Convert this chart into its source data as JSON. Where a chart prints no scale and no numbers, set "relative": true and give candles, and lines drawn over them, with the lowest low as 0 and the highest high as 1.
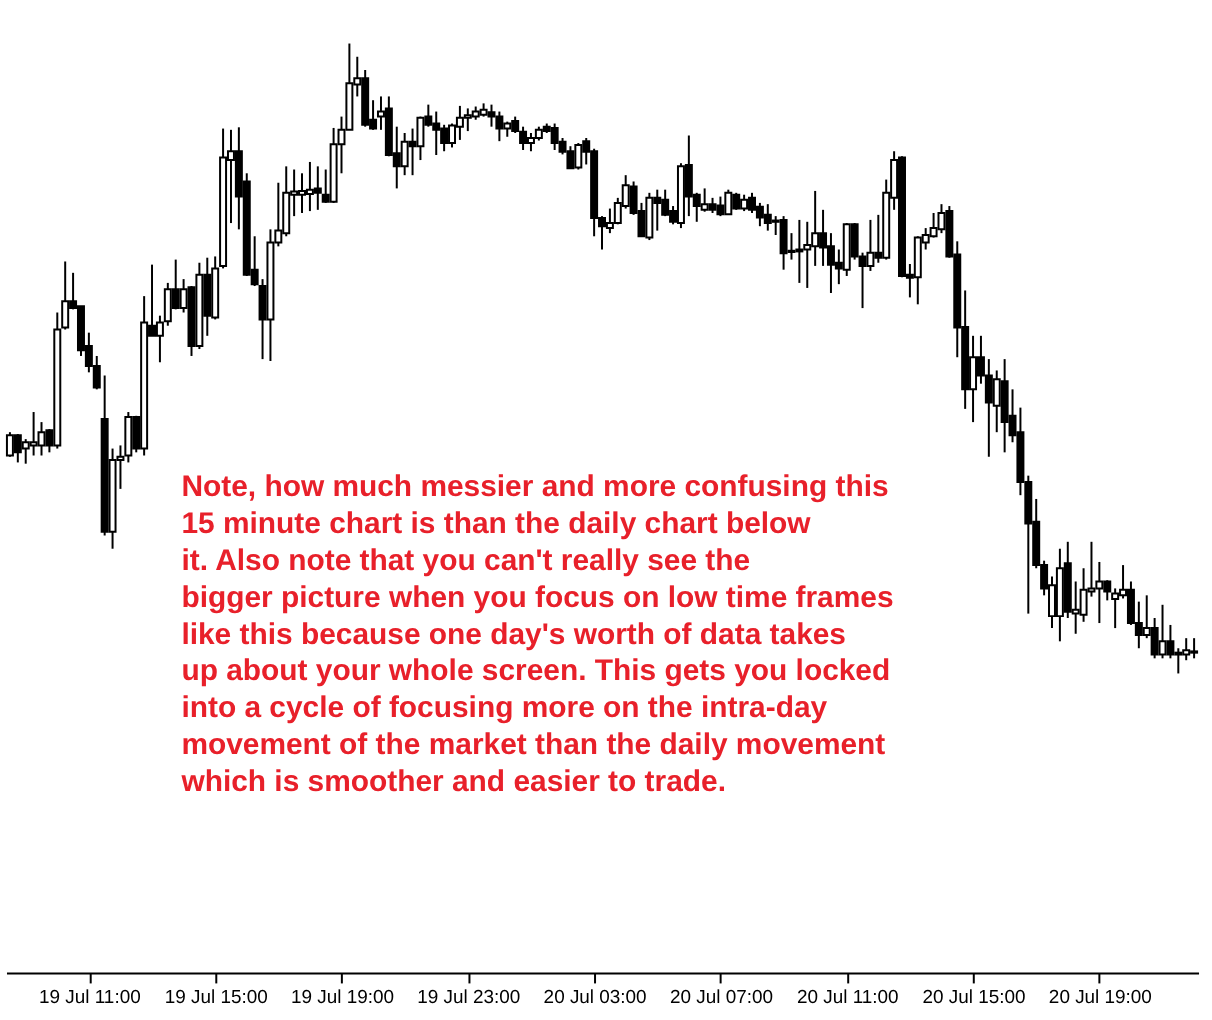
{
  "chart_data": {
    "type": "candlestick",
    "relative": true,
    "color": "#000000",
    "grid": false,
    "tick_labels": "x",
    "annotations": [
      "Note, how much messier and more confusing this 15 minute chart is than the daily chart below it. Also note that you can't really see the bigger picture when you focus on low time frames like this because one day's worth of data takes up about your whole screen. This gets you locked into a cycle of focusing more on the intra-day movement of the market than the daily movement which is smoother and easier to trade."
    ],
    "categories": [
      null,
      null,
      null,
      null,
      null,
      null,
      null,
      null,
      null,
      null,
      "19 Jul 11:00",
      null,
      null,
      null,
      null,
      null,
      null,
      null,
      null,
      null,
      null,
      null,
      null,
      null,
      null,
      null,
      "19 Jul 15:00",
      null,
      null,
      null,
      null,
      null,
      null,
      null,
      null,
      null,
      null,
      null,
      null,
      null,
      null,
      null,
      "19 Jul 19:00",
      null,
      null,
      null,
      null,
      null,
      null,
      null,
      null,
      null,
      null,
      null,
      null,
      null,
      null,
      null,
      "19 Jul 23:00",
      null,
      null,
      null,
      null,
      null,
      null,
      null,
      null,
      null,
      null,
      null,
      null,
      null,
      null,
      null,
      "20 Jul 03:00",
      null,
      null,
      null,
      null,
      null,
      null,
      null,
      null,
      null,
      null,
      null,
      null,
      null,
      null,
      null,
      "20 Jul 07:00",
      null,
      null,
      null,
      null,
      null,
      null,
      null,
      null,
      null,
      null,
      null,
      null,
      null,
      null,
      null,
      "20 Jul 11:00",
      null,
      null,
      null,
      null,
      null,
      null,
      null,
      null,
      null,
      null,
      null,
      null,
      null,
      null,
      null,
      "20 Jul 15:00",
      null,
      null,
      null,
      null,
      null,
      null,
      null,
      null,
      null,
      null,
      null,
      null,
      null,
      null,
      null,
      "20 Jul 19:00",
      null,
      null,
      null,
      null,
      null,
      null,
      null,
      null,
      null,
      null,
      null,
      null
    ],
    "ohlc": [
      [
        0.346,
        0.383,
        0.344,
        0.378
      ],
      [
        0.378,
        0.38,
        0.335,
        0.351
      ],
      [
        0.357,
        0.372,
        0.333,
        0.367
      ],
      [
        0.362,
        0.415,
        0.346,
        0.367
      ],
      [
        0.362,
        0.399,
        0.346,
        0.383
      ],
      [
        0.386,
        0.388,
        0.351,
        0.362
      ],
      [
        0.362,
        0.573,
        0.357,
        0.546
      ],
      [
        0.549,
        0.654,
        0.546,
        0.591
      ],
      [
        0.591,
        0.636,
        0.578,
        0.58
      ],
      [
        0.583,
        0.583,
        0.504,
        0.513
      ],
      [
        0.52,
        0.541,
        0.478,
        0.488
      ],
      [
        0.488,
        0.504,
        0.451,
        0.454
      ],
      [
        0.404,
        0.473,
        0.219,
        0.225
      ],
      [
        0.225,
        0.357,
        0.198,
        0.339
      ],
      [
        0.339,
        0.362,
        0.293,
        0.344
      ],
      [
        0.346,
        0.415,
        0.335,
        0.407
      ],
      [
        0.407,
        0.409,
        0.351,
        0.357
      ],
      [
        0.357,
        0.599,
        0.346,
        0.557
      ],
      [
        0.552,
        0.649,
        0.536,
        0.536
      ],
      [
        0.536,
        0.568,
        0.494,
        0.557
      ],
      [
        0.559,
        0.62,
        0.552,
        0.61
      ],
      [
        0.61,
        0.657,
        0.578,
        0.58
      ],
      [
        0.58,
        0.626,
        0.573,
        0.61
      ],
      [
        0.613,
        0.615,
        0.504,
        0.52
      ],
      [
        0.52,
        0.652,
        0.515,
        0.633
      ],
      [
        0.633,
        0.66,
        0.536,
        0.568
      ],
      [
        0.565,
        0.662,
        0.562,
        0.643
      ],
      [
        0.647,
        0.865,
        0.643,
        0.819
      ],
      [
        0.815,
        0.863,
        0.715,
        0.829
      ],
      [
        0.829,
        0.867,
        0.705,
        0.757
      ],
      [
        0.781,
        0.794,
        0.631,
        0.633
      ],
      [
        0.641,
        0.694,
        0.615,
        0.618
      ],
      [
        0.615,
        0.626,
        0.499,
        0.562
      ],
      [
        0.562,
        0.705,
        0.496,
        0.684
      ],
      [
        0.684,
        0.779,
        0.678,
        0.703
      ],
      [
        0.699,
        0.805,
        0.694,
        0.763
      ],
      [
        0.76,
        0.8,
        0.726,
        0.765
      ],
      [
        0.76,
        0.794,
        0.731,
        0.766
      ],
      [
        0.761,
        0.812,
        0.734,
        0.768
      ],
      [
        0.77,
        0.805,
        0.736,
        0.763
      ],
      [
        0.76,
        0.8,
        0.747,
        0.749
      ],
      [
        0.749,
        0.866,
        0.747,
        0.84
      ],
      [
        0.84,
        0.884,
        0.794,
        0.863
      ],
      [
        0.863,
        1.0,
        0.863,
        0.937
      ],
      [
        0.935,
        0.979,
        0.916,
        0.945
      ],
      [
        0.945,
        0.958,
        0.868,
        0.871
      ],
      [
        0.879,
        0.91,
        0.863,
        0.865
      ],
      [
        0.884,
        0.916,
        0.863,
        0.892
      ],
      [
        0.897,
        0.916,
        0.821,
        0.823
      ],
      [
        0.826,
        0.868,
        0.77,
        0.805
      ],
      [
        0.805,
        0.858,
        0.791,
        0.844
      ],
      [
        0.844,
        0.865,
        0.791,
        0.837
      ],
      [
        0.837,
        0.884,
        0.815,
        0.882
      ],
      [
        0.884,
        0.903,
        0.868,
        0.871
      ],
      [
        0.873,
        0.892,
        0.823,
        0.863
      ],
      [
        0.865,
        0.871,
        0.829,
        0.842
      ],
      [
        0.842,
        0.873,
        0.835,
        0.87
      ],
      [
        0.868,
        0.901,
        0.847,
        0.882
      ],
      [
        0.882,
        0.897,
        0.861,
        0.886
      ],
      [
        0.884,
        0.9,
        0.879,
        0.892
      ],
      [
        0.887,
        0.905,
        0.884,
        0.895
      ],
      [
        0.891,
        0.903,
        0.868,
        0.884
      ],
      [
        0.884,
        0.892,
        0.845,
        0.865
      ],
      [
        0.865,
        0.876,
        0.852,
        0.873
      ],
      [
        0.877,
        0.884,
        0.858,
        0.861
      ],
      [
        0.86,
        0.868,
        0.831,
        0.842
      ],
      [
        0.842,
        0.858,
        0.829,
        0.85
      ],
      [
        0.85,
        0.868,
        0.846,
        0.863
      ],
      [
        0.868,
        0.873,
        0.858,
        0.861
      ],
      [
        0.866,
        0.873,
        0.831,
        0.842
      ],
      [
        0.844,
        0.85,
        0.824,
        0.828
      ],
      [
        0.829,
        0.837,
        0.802,
        0.802
      ],
      [
        0.803,
        0.842,
        0.8,
        0.839
      ],
      [
        0.845,
        0.85,
        0.808,
        0.828
      ],
      [
        0.829,
        0.833,
        0.694,
        0.723
      ],
      [
        0.723,
        0.726,
        0.673,
        0.71
      ],
      [
        0.707,
        0.738,
        0.699,
        0.715
      ],
      [
        0.715,
        0.755,
        0.713,
        0.747
      ],
      [
        0.742,
        0.791,
        0.738,
        0.775
      ],
      [
        0.773,
        0.781,
        0.728,
        0.731
      ],
      [
        0.734,
        0.747,
        0.694,
        0.694
      ],
      [
        0.692,
        0.763,
        0.688,
        0.755
      ],
      [
        0.755,
        0.768,
        0.703,
        0.747
      ],
      [
        0.752,
        0.768,
        0.726,
        0.728
      ],
      [
        0.734,
        0.742,
        0.713,
        0.717
      ],
      [
        0.715,
        0.81,
        0.707,
        0.805
      ],
      [
        0.807,
        0.854,
        0.726,
        0.757
      ],
      [
        0.76,
        0.763,
        0.717,
        0.742
      ],
      [
        0.736,
        0.77,
        0.733,
        0.745
      ],
      [
        0.745,
        0.755,
        0.731,
        0.736
      ],
      [
        0.743,
        0.757,
        0.726,
        0.729
      ],
      [
        0.729,
        0.768,
        0.728,
        0.763
      ],
      [
        0.76,
        0.763,
        0.736,
        0.738
      ],
      [
        0.738,
        0.76,
        0.734,
        0.752
      ],
      [
        0.755,
        0.763,
        0.731,
        0.736
      ],
      [
        0.741,
        0.747,
        0.71,
        0.724
      ],
      [
        0.728,
        0.745,
        0.703,
        0.715
      ],
      [
        0.717,
        0.726,
        0.696,
        0.719
      ],
      [
        0.72,
        0.726,
        0.641,
        0.667
      ],
      [
        0.669,
        0.699,
        0.657,
        0.671
      ],
      [
        0.67,
        0.72,
        0.62,
        0.673
      ],
      [
        0.673,
        0.717,
        0.612,
        0.68
      ],
      [
        0.678,
        0.766,
        0.647,
        0.699
      ],
      [
        0.699,
        0.736,
        0.647,
        0.676
      ],
      [
        0.678,
        0.699,
        0.604,
        0.649
      ],
      [
        0.652,
        0.673,
        0.618,
        0.643
      ],
      [
        0.641,
        0.715,
        0.631,
        0.713
      ],
      [
        0.713,
        0.715,
        0.657,
        0.662
      ],
      [
        0.662,
        0.668,
        0.58,
        0.647
      ],
      [
        0.647,
        0.72,
        0.639,
        0.668
      ],
      [
        0.668,
        0.728,
        0.652,
        0.66
      ],
      [
        0.66,
        0.784,
        0.657,
        0.763
      ],
      [
        0.755,
        0.829,
        0.736,
        0.815
      ],
      [
        0.819,
        0.821,
        0.629,
        0.631
      ],
      [
        0.633,
        0.65,
        0.597,
        0.628
      ],
      [
        0.629,
        0.694,
        0.586,
        0.692
      ],
      [
        0.684,
        0.707,
        0.673,
        0.696
      ],
      [
        0.694,
        0.731,
        0.692,
        0.707
      ],
      [
        0.705,
        0.745,
        0.699,
        0.731
      ],
      [
        0.734,
        0.742,
        0.66,
        0.662
      ],
      [
        0.665,
        0.686,
        0.502,
        0.549
      ],
      [
        0.55,
        0.608,
        0.42,
        0.451
      ],
      [
        0.451,
        0.536,
        0.399,
        0.502
      ],
      [
        0.502,
        0.536,
        0.46,
        0.473
      ],
      [
        0.473,
        0.499,
        0.344,
        0.43
      ],
      [
        0.425,
        0.481,
        0.383,
        0.467
      ],
      [
        0.464,
        0.499,
        0.351,
        0.399
      ],
      [
        0.409,
        0.451,
        0.367,
        0.378
      ],
      [
        0.383,
        0.422,
        0.283,
        0.304
      ],
      [
        0.304,
        0.314,
        0.095,
        0.238
      ],
      [
        0.241,
        0.277,
        0.167,
        0.172
      ],
      [
        0.172,
        0.179,
        0.124,
        0.135
      ],
      [
        0.091,
        0.154,
        0.072,
        0.14
      ],
      [
        0.091,
        0.198,
        0.051,
        0.167
      ],
      [
        0.175,
        0.209,
        0.088,
        0.098
      ],
      [
        0.095,
        0.146,
        0.063,
        0.101
      ],
      [
        0.093,
        0.167,
        0.082,
        0.133
      ],
      [
        0.13,
        0.209,
        0.122,
        0.135
      ],
      [
        0.135,
        0.177,
        0.08,
        0.146
      ],
      [
        0.146,
        0.148,
        0.116,
        0.13
      ],
      [
        0.118,
        0.135,
        0.072,
        0.127
      ],
      [
        0.124,
        0.172,
        0.119,
        0.133
      ],
      [
        0.133,
        0.146,
        0.077,
        0.08
      ],
      [
        0.08,
        0.114,
        0.04,
        0.061
      ],
      [
        0.061,
        0.124,
        0.056,
        0.072
      ],
      [
        0.072,
        0.088,
        0.024,
        0.03
      ],
      [
        0.03,
        0.109,
        0.024,
        0.051
      ],
      [
        0.051,
        0.077,
        0.024,
        0.03
      ],
      [
        0.03,
        0.04,
        0.0,
        0.033
      ],
      [
        0.03,
        0.056,
        0.021,
        0.037
      ],
      [
        0.033,
        0.056,
        0.024,
        0.035
      ]
    ]
  }
}
